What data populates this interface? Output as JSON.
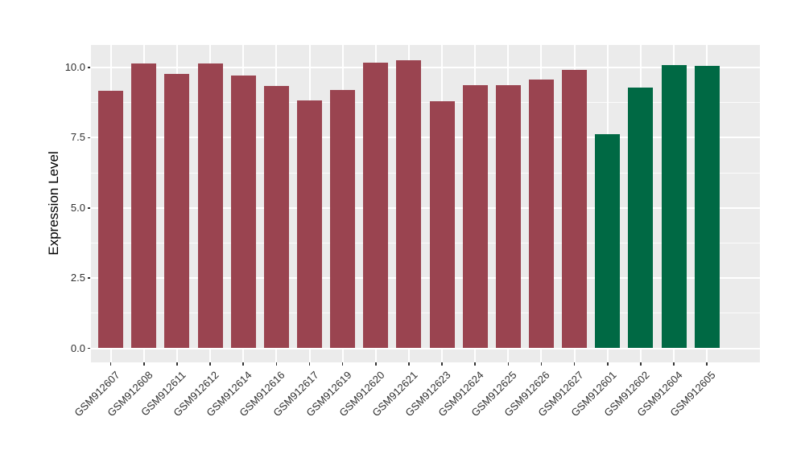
{
  "chart_data": {
    "type": "bar",
    "title": "",
    "xlabel": "",
    "ylabel": "Expression Level",
    "categories": [
      "GSM912607",
      "GSM912608",
      "GSM912611",
      "GSM912612",
      "GSM912614",
      "GSM912616",
      "GSM912617",
      "GSM912619",
      "GSM912620",
      "GSM912621",
      "GSM912623",
      "GSM912624",
      "GSM912625",
      "GSM912626",
      "GSM912627",
      "GSM912601",
      "GSM912602",
      "GSM912604",
      "GSM912605"
    ],
    "values": [
      9.16,
      10.14,
      9.78,
      10.14,
      9.71,
      9.35,
      8.84,
      9.19,
      10.17,
      10.26,
      8.81,
      9.37,
      9.37,
      9.58,
      9.91,
      7.63,
      9.28,
      10.09,
      10.06
    ],
    "bar_colors": [
      "#9A4450",
      "#9A4450",
      "#9A4450",
      "#9A4450",
      "#9A4450",
      "#9A4450",
      "#9A4450",
      "#9A4450",
      "#9A4450",
      "#9A4450",
      "#9A4450",
      "#9A4450",
      "#9A4450",
      "#9A4450",
      "#9A4450",
      "#006944",
      "#006944",
      "#006944",
      "#006944"
    ],
    "group_color_legend": {
      "red_group": "#9A4450",
      "green_group": "#006944"
    },
    "ylim": [
      0,
      10.79
    ],
    "ytick_labels": [
      "0.0",
      "2.5",
      "5.0",
      "7.5",
      "10.0"
    ],
    "ytick_values": [
      0,
      2.5,
      5,
      7.5,
      10
    ],
    "yminor_values": [
      1.25,
      3.75,
      6.25,
      8.75
    ],
    "grid": "on",
    "legend_position": "none",
    "colors": {
      "panel_background": "#EBEBEB",
      "grid": "#FFFFFF",
      "axis_text": "#303030",
      "tick_mark": "#333333",
      "outer_background": "#FFFFFF"
    }
  }
}
